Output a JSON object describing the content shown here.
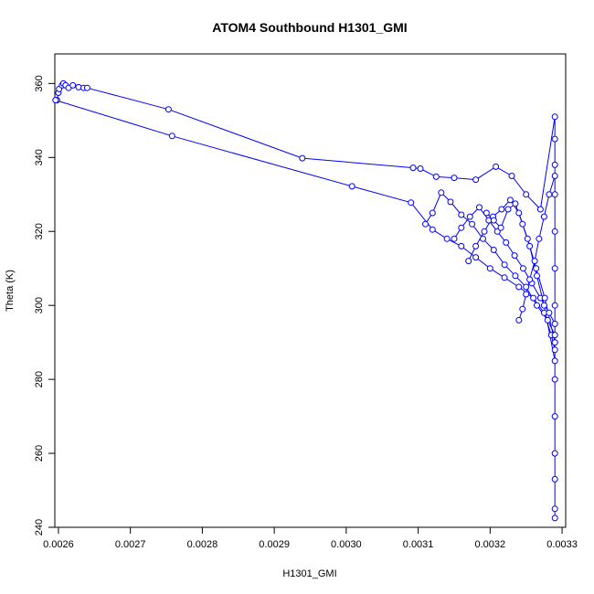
{
  "chart_data": {
    "type": "scatter",
    "title": "ATOM4 Southbound H1301_GMI",
    "xlabel": "H1301_GMI",
    "ylabel": "Theta (K)",
    "xlim": [
      0.002595,
      0.003305
    ],
    "ylim": [
      240,
      368
    ],
    "x_ticks": [
      "0.0026",
      "0.0027",
      "0.0028",
      "0.0029",
      "0.0030",
      "0.0031",
      "0.0032",
      "0.0033"
    ],
    "x_tick_values": [
      0.0026,
      0.0027,
      0.0028,
      0.0029,
      0.003,
      0.0031,
      0.0032,
      0.0033
    ],
    "y_ticks": [
      "240",
      "260",
      "280",
      "300",
      "320",
      "340",
      "360"
    ],
    "y_tick_values": [
      240,
      260,
      280,
      300,
      320,
      340,
      360
    ],
    "grid": false,
    "color": "#0000ff",
    "marker": "open-circle",
    "series": [
      {
        "x": [
          0.002598,
          0.0026,
          0.002601,
          0.002605,
          0.002607,
          0.00261,
          0.002614,
          0.00262,
          0.002628,
          0.002635,
          0.00264,
          0.002753,
          0.002939,
          0.003093,
          0.003103,
          0.003125,
          0.00315,
          0.00318,
          0.003208,
          0.00323,
          0.00325,
          0.00327,
          0.00329,
          0.00329,
          0.00329,
          0.00329,
          0.00329,
          0.00329,
          0.00329,
          0.00329,
          0.00329,
          0.00329,
          0.00329,
          0.00329,
          0.00329,
          0.00329
        ],
        "y": [
          355.5,
          357.5,
          358.5,
          359.5,
          360.0,
          359.5,
          358.8,
          359.5,
          359.0,
          358.8,
          358.8,
          353.0,
          339.8,
          337.2,
          337.0,
          334.8,
          334.5,
          334.0,
          337.5,
          335.0,
          330.0,
          326.0,
          351.0,
          345.0,
          338.0,
          330.0,
          320.0,
          310.0,
          300.0,
          290.0,
          280.0,
          270.0,
          260.0,
          253.0,
          245.0,
          242.5
        ]
      },
      {
        "x": [
          0.002596,
          0.002758,
          0.003008,
          0.00309,
          0.00312,
          0.00314,
          0.00316,
          0.00318,
          0.0032,
          0.00322,
          0.00324,
          0.00326,
          0.003275,
          0.003285,
          0.00329
        ],
        "y": [
          355.5,
          345.8,
          332.2,
          327.8,
          320.5,
          318.0,
          316.0,
          313.0,
          310.0,
          307.5,
          305.0,
          302.0,
          298.0,
          292.0,
          288.0
        ]
      },
      {
        "x": [
          0.00311,
          0.00312,
          0.003132,
          0.003145,
          0.00316,
          0.003175,
          0.00319,
          0.003205,
          0.00322,
          0.003235,
          0.00325,
          0.003265,
          0.00328,
          0.00329
        ],
        "y": [
          322.0,
          325.0,
          330.5,
          328.0,
          324.5,
          322.0,
          318.0,
          315.0,
          311.0,
          308.0,
          305.0,
          300.0,
          296.0,
          292.0
        ]
      },
      {
        "x": [
          0.00315,
          0.00316,
          0.003172,
          0.003185,
          0.003198,
          0.00321,
          0.003222,
          0.003234,
          0.003246,
          0.003258,
          0.00327,
          0.003282,
          0.00329
        ],
        "y": [
          318.0,
          321.0,
          324.0,
          326.5,
          323.0,
          320.0,
          317.0,
          313.5,
          310.0,
          306.0,
          302.0,
          298.0,
          295.0
        ]
      },
      {
        "x": [
          0.00317,
          0.00318,
          0.003192,
          0.003204,
          0.003216,
          0.003228,
          0.00324,
          0.003252,
          0.003264,
          0.003276,
          0.00329
        ],
        "y": [
          312.0,
          316.0,
          320.0,
          324.0,
          326.0,
          328.5,
          325.0,
          318.0,
          310.0,
          302.0,
          290.0
        ]
      },
      {
        "x": [
          0.003195,
          0.003205,
          0.003215,
          0.003225,
          0.003235,
          0.003245,
          0.003255,
          0.003265,
          0.003275,
          0.00329
        ],
        "y": [
          325.0,
          323.0,
          321.0,
          326.0,
          327.5,
          322.0,
          316.0,
          308.0,
          300.0,
          285.0
        ]
      },
      {
        "x": [
          0.00324,
          0.003245,
          0.00325,
          0.003255,
          0.003262,
          0.003268,
          0.003275,
          0.003282,
          0.00329
        ],
        "y": [
          296.0,
          299.0,
          303.0,
          307.0,
          312.0,
          318.0,
          324.0,
          330.0,
          335.0
        ]
      }
    ]
  }
}
